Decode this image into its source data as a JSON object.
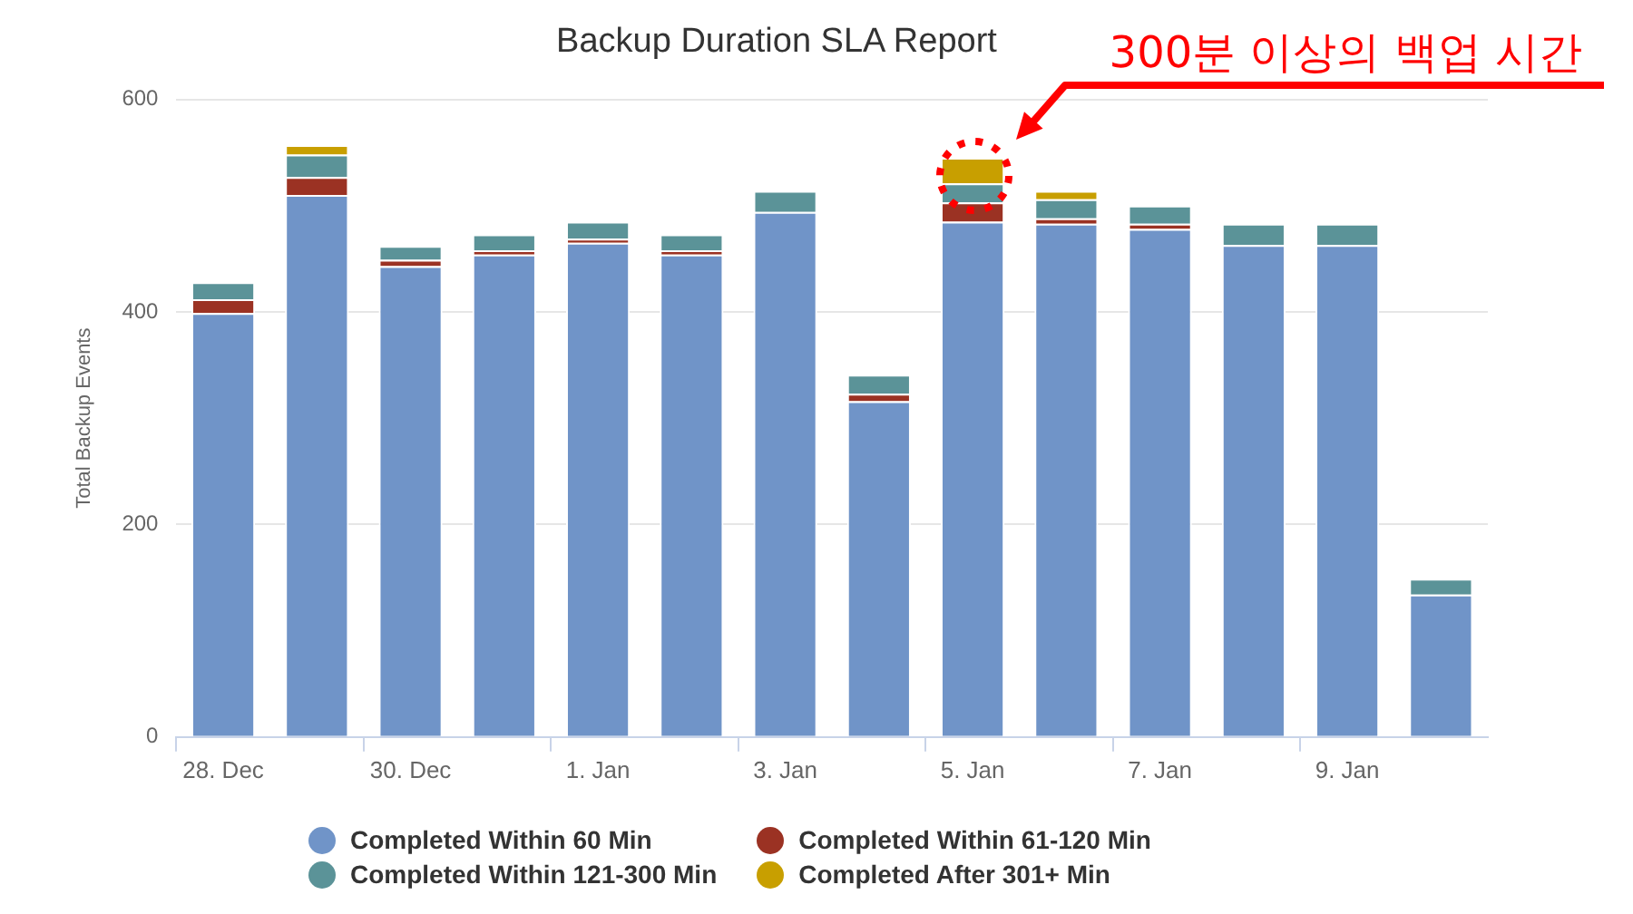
{
  "chart_data": {
    "type": "bar",
    "title": "Backup Duration SLA Report",
    "ylabel": "Total Backup Events",
    "stacked": true,
    "categories": [
      "28. Dec",
      null,
      "30. Dec",
      null,
      "1. Jan",
      null,
      "3. Jan",
      null,
      "5. Jan",
      null,
      "7. Jan",
      null,
      "9. Jan",
      null
    ],
    "series": [
      {
        "name": "Completed Within 60 Min",
        "color": "#7094c8",
        "values": [
          399,
          510,
          443,
          454,
          465,
          454,
          494,
          316,
          485,
          483,
          478,
          463,
          463,
          134
        ]
      },
      {
        "name": "Completed Within 61-120 Min",
        "color": "#9b3223",
        "values": [
          13,
          17,
          6,
          4,
          4,
          4,
          null,
          7,
          18,
          5,
          5,
          null,
          null,
          null
        ]
      },
      {
        "name": "Completed Within 121-300 Min",
        "color": "#5b9398",
        "values": [
          16,
          21,
          13,
          15,
          16,
          15,
          20,
          18,
          18,
          18,
          17,
          20,
          20,
          15
        ]
      },
      {
        "name": "Completed After 301+ Min",
        "color": "#c89f00",
        "values": [
          null,
          9,
          null,
          null,
          null,
          null,
          null,
          null,
          24,
          8,
          null,
          null,
          null,
          null
        ]
      }
    ],
    "ylim": [
      0,
      600
    ],
    "yticks": [
      0,
      200,
      400,
      600
    ],
    "grid": "y",
    "legend": "bottom",
    "annotations": [
      "300분 이상의 백업 시간"
    ]
  }
}
